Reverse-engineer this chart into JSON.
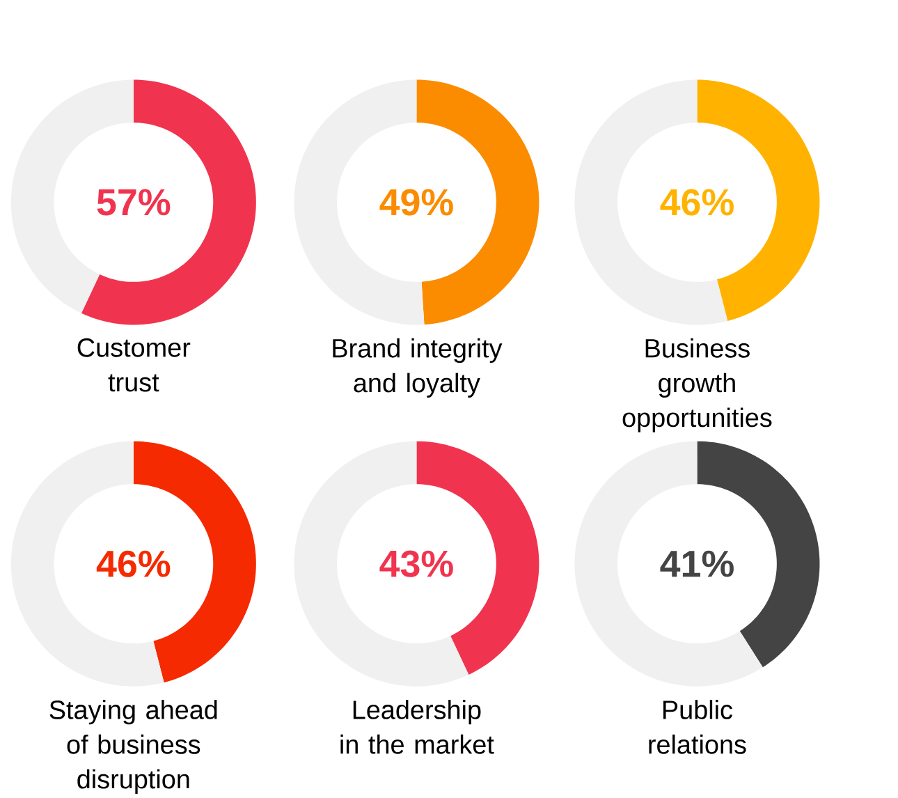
{
  "chart_data": [
    {
      "type": "donut",
      "title": "Customer trust",
      "categories": [
        null,
        null
      ],
      "values": [
        57,
        43
      ],
      "colors": [
        "#f0344f",
        "#f0f0f0"
      ],
      "annotations": [
        "57%"
      ]
    },
    {
      "type": "donut",
      "title": "Brand integrity and loyalty",
      "categories": [
        null,
        null
      ],
      "values": [
        49,
        51
      ],
      "colors": [
        "#fb8c00",
        "#f0f0f0"
      ],
      "annotations": [
        "49%"
      ]
    },
    {
      "type": "donut",
      "title": "Business growth opportunities",
      "categories": [
        null,
        null
      ],
      "values": [
        46,
        54
      ],
      "colors": [
        "#ffb300",
        "#f0f0f0"
      ],
      "annotations": [
        "46%"
      ]
    },
    {
      "type": "donut",
      "title": "Staying ahead of business disruption",
      "categories": [
        null,
        null
      ],
      "values": [
        46,
        54
      ],
      "colors": [
        "#f52a00",
        "#f0f0f0"
      ],
      "annotations": [
        "46%"
      ]
    },
    {
      "type": "donut",
      "title": "Leadership in the market",
      "categories": [
        null,
        null
      ],
      "values": [
        43,
        57
      ],
      "colors": [
        "#f0344f",
        "#f0f0f0"
      ],
      "annotations": [
        "43%"
      ]
    },
    {
      "type": "donut",
      "title": "Public relations",
      "categories": [
        null,
        null
      ],
      "values": [
        41,
        59
      ],
      "colors": [
        "#444444",
        "#f0f0f0"
      ],
      "annotations": [
        "41%"
      ]
    }
  ]
}
